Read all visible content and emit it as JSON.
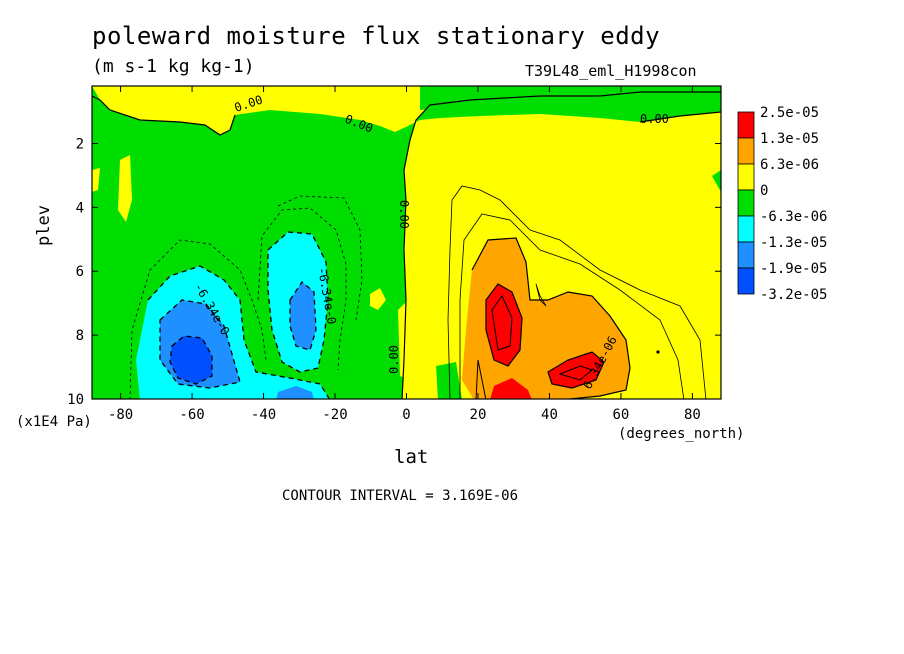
{
  "header": {
    "title": "poleward moisture flux stationary eddy",
    "units": "(m s-1 kg kg-1)",
    "run_id": "T39L48_eml_H1998con"
  },
  "axes": {
    "ylabel": "plev",
    "yunit": "(x1E4 Pa)",
    "xlabel": "lat",
    "xunit": "(degrees_north)"
  },
  "footer": {
    "contour_interval": "CONTOUR INTERVAL = 3.169E-06"
  },
  "chart_data": {
    "type": "heatmap",
    "title": "poleward moisture flux stationary eddy",
    "xlabel": "lat",
    "ylabel": "plev",
    "xlim": [
      -88,
      88
    ],
    "ylim": [
      10,
      0.2
    ],
    "x_ticks": [
      -80,
      -60,
      -40,
      -20,
      0,
      20,
      40,
      60,
      80
    ],
    "y_ticks": [
      2,
      4,
      6,
      8,
      10
    ],
    "contour_interval": 3.169e-06,
    "legend": {
      "labels": [
        "2.5e-05",
        "1.3e-05",
        "6.3e-06",
        "0",
        "-6.3e-06",
        "-1.3e-05",
        "-1.9e-05",
        "-3.2e-05"
      ],
      "colors": [
        "#ff0000",
        "#ffa500",
        "#ffff00",
        "#00dd00",
        "#00ffff",
        "#1e90ff",
        "#0050ff"
      ]
    },
    "contour_labels": [
      "0.00",
      "0.00",
      "0.00",
      "0.00",
      "0.00",
      "-6.34e-0",
      "-6.34e-0",
      "6.34e-06"
    ],
    "regions": [
      {
        "level": "positive",
        "lat": [
          0,
          88
        ],
        "plev": [
          0.2,
          10
        ]
      },
      {
        "level": "negative",
        "lat": [
          -88,
          0
        ],
        "plev": [
          1,
          10
        ]
      },
      {
        "level": "min",
        "lat": [
          -64,
          -58
        ],
        "plev": [
          8.6,
          9.4
        ]
      },
      {
        "level": "max",
        "lat": [
          24,
          32
        ],
        "plev": [
          7,
          9
        ]
      }
    ]
  },
  "colors": {
    "yellow": "#ffff00",
    "green": "#00dd00",
    "orange": "#ffa500",
    "red": "#ff0000",
    "cyan": "#00ffff",
    "blue_light": "#1e90ff",
    "blue_dark": "#0050ff"
  }
}
